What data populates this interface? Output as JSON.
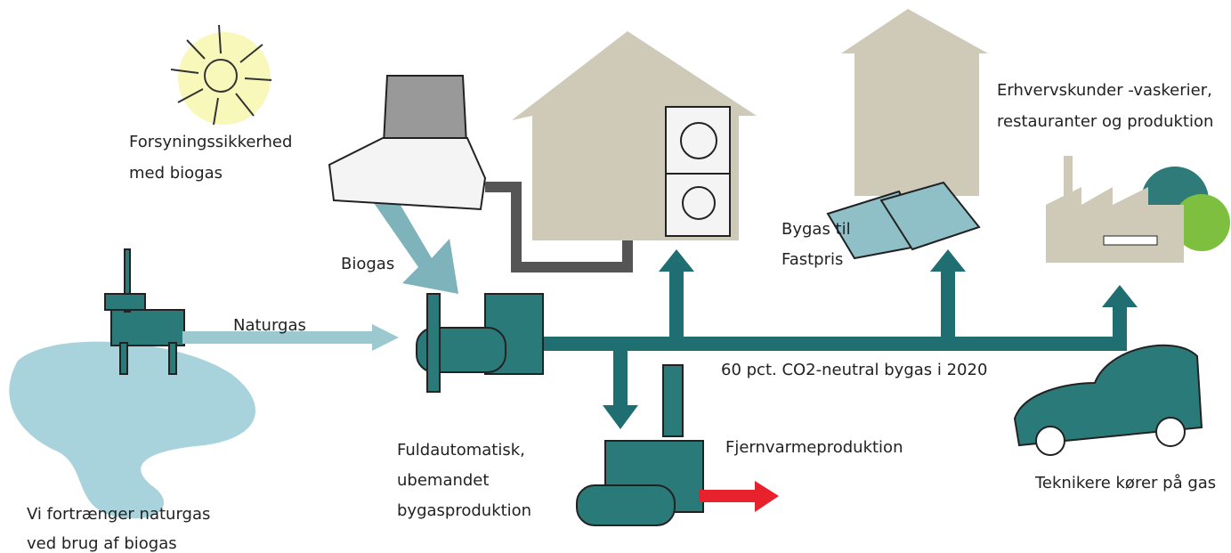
{
  "labels": [
    {
      "lines": [
        "Forsyningssikkerhed",
        "med biogas"
      ]
    },
    {
      "lines": [
        "Biogas"
      ]
    },
    {
      "lines": [
        "Naturgas"
      ]
    },
    {
      "lines": [
        "Vi fortrænger naturgas",
        "ved brug af biogas"
      ]
    },
    {
      "lines": [
        "Fuldautomatisk,",
        "ubemandet",
        "bygasproduktion"
      ]
    },
    {
      "lines": [
        "Fjernvarmeproduktion"
      ]
    },
    {
      "lines": [
        "60 pct. CO2-neutral bygas i 2020"
      ]
    },
    {
      "lines": [
        "Bygas til",
        "Fastpris"
      ]
    },
    {
      "lines": [
        "Erhvervskunder -vaskerier,",
        "restauranter og produktion"
      ]
    },
    {
      "lines": [
        "Teknikere kører på gas"
      ]
    }
  ]
}
